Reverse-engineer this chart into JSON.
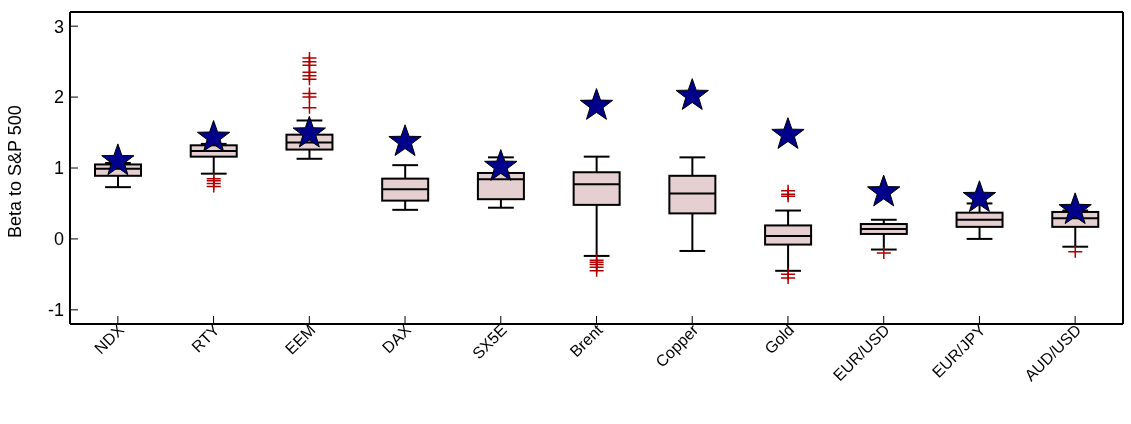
{
  "chart_data": {
    "type": "box",
    "ylabel": "Beta to S&P 500",
    "categories": [
      "NDX",
      "RTY",
      "EEM",
      "DAX",
      "SX5E",
      "Brent",
      "Copper",
      "Gold",
      "EUR/USD",
      "EUR/JPY",
      "AUD/USD"
    ],
    "ylim": [
      -1.2,
      3.2
    ],
    "yticks": [
      -1,
      0,
      1,
      2,
      3
    ],
    "series": [
      {
        "type": "box",
        "color": "#e6cfd0",
        "boxes": [
          {
            "low": 0.73,
            "q1": 0.89,
            "median": 0.99,
            "q3": 1.05,
            "high": 1.07
          },
          {
            "low": 0.92,
            "q1": 1.16,
            "median": 1.24,
            "q3": 1.32,
            "high": 1.34,
            "outliers": [
              0.85,
              0.82,
              0.78,
              0.74
            ]
          },
          {
            "low": 1.13,
            "q1": 1.26,
            "median": 1.36,
            "q3": 1.47,
            "high": 1.67,
            "outliers": [
              1.85,
              2.0,
              2.05,
              2.25,
              2.3,
              2.35,
              2.45,
              2.5,
              2.55
            ]
          },
          {
            "low": 0.41,
            "q1": 0.54,
            "median": 0.7,
            "q3": 0.85,
            "high": 1.04
          },
          {
            "low": 0.44,
            "q1": 0.56,
            "median": 0.84,
            "q3": 0.93,
            "high": 1.15
          },
          {
            "low": -0.24,
            "q1": 0.48,
            "median": 0.77,
            "q3": 0.94,
            "high": 1.16,
            "outliers": [
              -0.3,
              -0.33,
              -0.36,
              -0.4,
              -0.45
            ]
          },
          {
            "low": -0.17,
            "q1": 0.36,
            "median": 0.64,
            "q3": 0.89,
            "high": 1.15
          },
          {
            "low": -0.45,
            "q1": -0.08,
            "median": 0.04,
            "q3": 0.19,
            "high": 0.4,
            "outliers": [
              0.6,
              0.63,
              0.68,
              -0.5,
              -0.55
            ]
          },
          {
            "low": -0.15,
            "q1": 0.07,
            "median": 0.14,
            "q3": 0.21,
            "high": 0.27,
            "outliers": [
              -0.2
            ]
          },
          {
            "low": 0.0,
            "q1": 0.17,
            "median": 0.27,
            "q3": 0.37,
            "high": 0.5
          },
          {
            "low": -0.11,
            "q1": 0.17,
            "median": 0.29,
            "q3": 0.38,
            "high": 0.4,
            "outliers": [
              -0.18
            ]
          }
        ]
      },
      {
        "type": "scatter",
        "color": "#00008b",
        "marker": "star",
        "x": [
          "NDX",
          "RTY",
          "EEM",
          "DAX",
          "SX5E",
          "Brent",
          "Copper",
          "Gold",
          "EUR/USD",
          "EUR/JPY",
          "AUD/USD"
        ],
        "values": [
          1.1,
          1.43,
          1.49,
          1.37,
          1.02,
          1.88,
          2.02,
          1.47,
          0.66,
          0.58,
          0.41
        ]
      }
    ]
  }
}
